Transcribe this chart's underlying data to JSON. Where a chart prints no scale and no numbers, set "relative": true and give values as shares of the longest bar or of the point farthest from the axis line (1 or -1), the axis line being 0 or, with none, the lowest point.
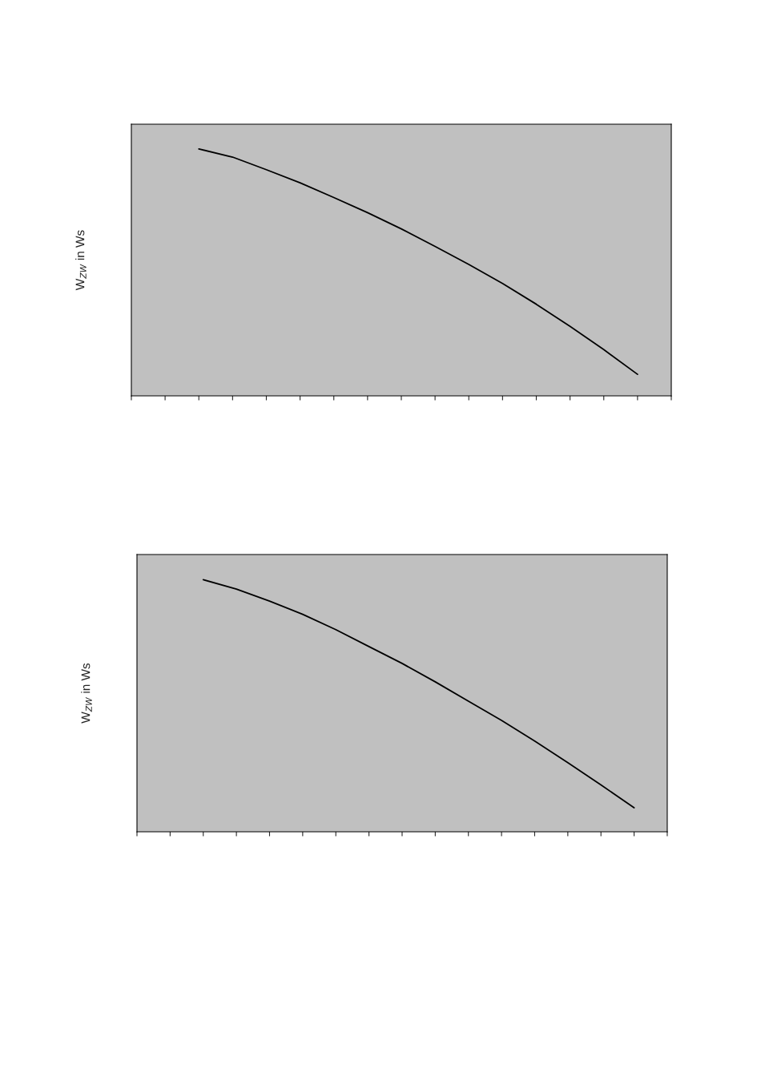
{
  "chart_data": [
    {
      "type": "line",
      "ylabel": "W$_{ZW}$ in Ws",
      "relative": true,
      "categories": [
        null,
        null,
        null,
        null,
        null,
        null,
        null,
        null,
        null,
        null,
        null,
        null,
        null,
        null,
        null,
        null,
        null
      ],
      "series": [
        {
          "color": "#000000",
          "values": [
            null,
            null,
            1.0,
            0.967,
            0.916,
            0.863,
            0.803,
            0.742,
            0.676,
            0.605,
            0.532,
            0.455,
            0.371,
            0.281,
            0.187,
            0.087,
            null
          ]
        }
      ]
    },
    {
      "type": "line",
      "ylabel": "W$_{ZW}$ in Ws",
      "relative": true,
      "categories": [
        null,
        null,
        null,
        null,
        null,
        null,
        null,
        null,
        null,
        null,
        null,
        null,
        null,
        null,
        null,
        null,
        null
      ],
      "series": [
        {
          "color": "#000000",
          "values": [
            null,
            null,
            1.0,
            0.963,
            0.915,
            0.863,
            0.802,
            0.735,
            0.668,
            0.595,
            0.518,
            0.442,
            0.36,
            0.274,
            0.186,
            0.095,
            null
          ]
        }
      ]
    }
  ]
}
